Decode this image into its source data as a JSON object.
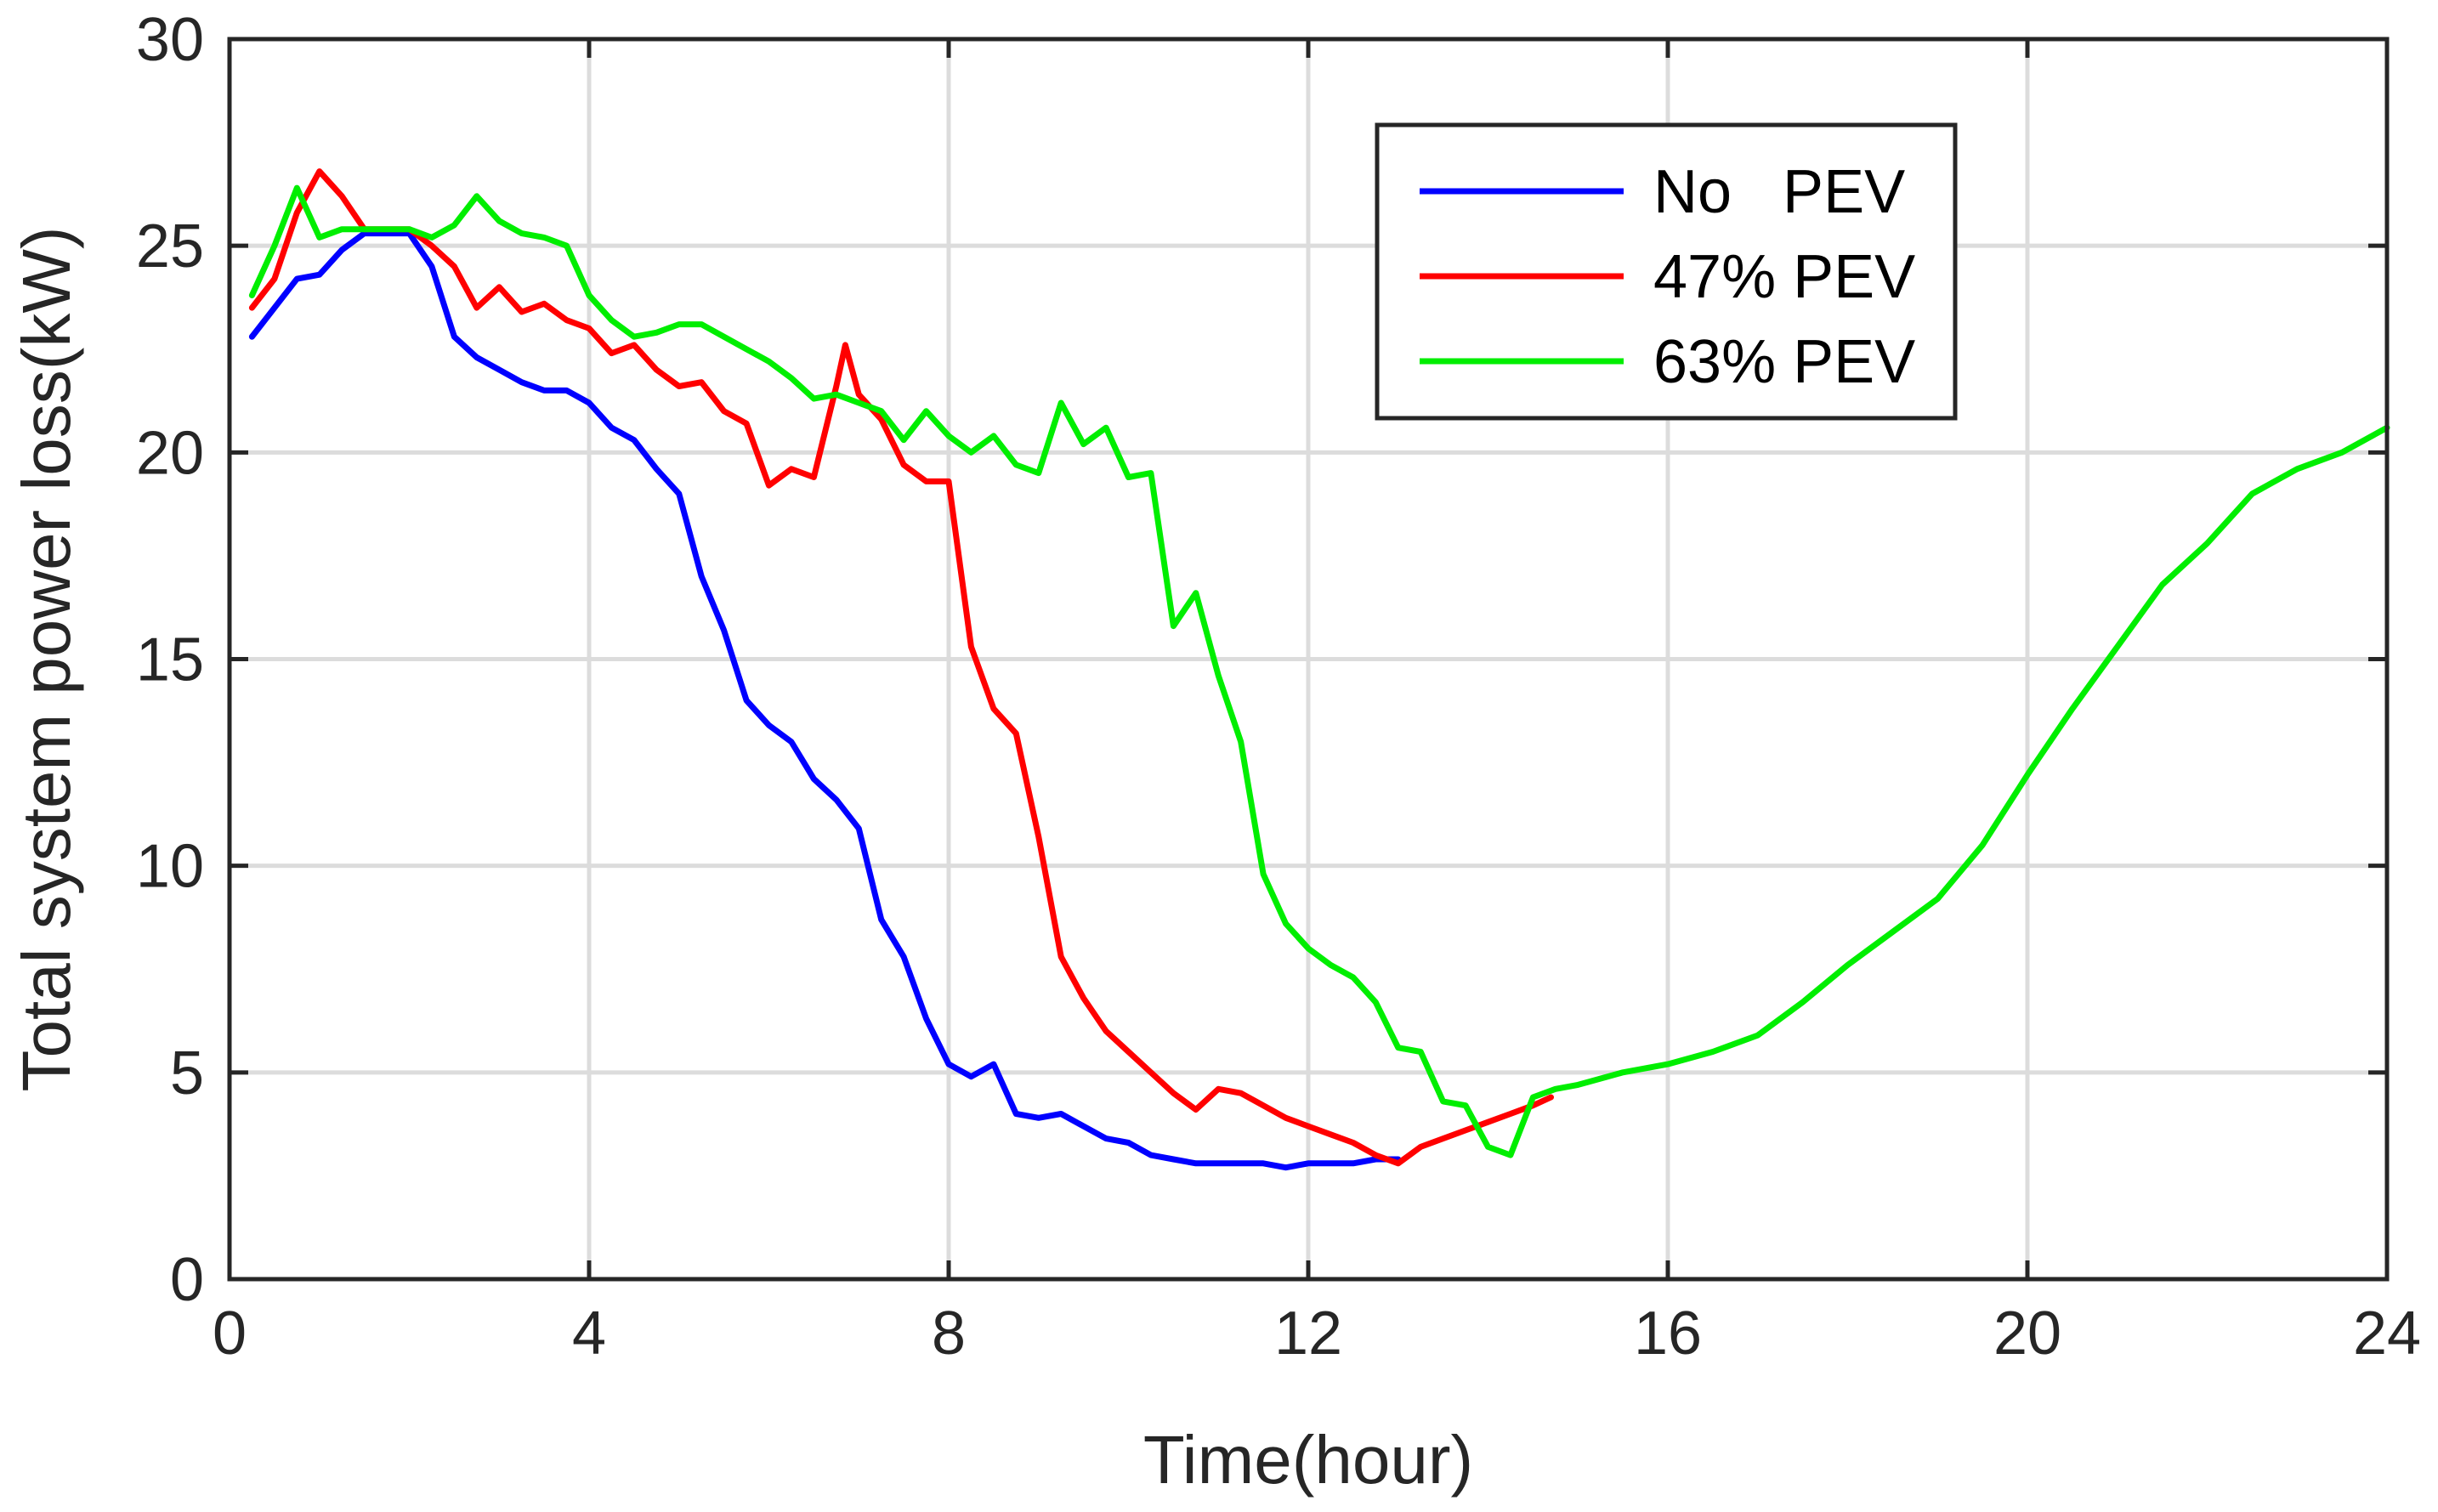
{
  "chart_data": {
    "type": "line",
    "title": "",
    "xlabel": "Time(hour)",
    "ylabel": "Total system power loss(kW)",
    "xlim": [
      0,
      24
    ],
    "ylim": [
      0,
      30
    ],
    "xticks": [
      0,
      4,
      8,
      12,
      16,
      20,
      24
    ],
    "yticks": [
      0,
      5,
      10,
      15,
      20,
      25,
      30
    ],
    "x_tick_labels": [
      "0",
      "4",
      "8",
      "12",
      "16",
      "20",
      "24"
    ],
    "y_tick_labels": [
      "0",
      "5",
      "10",
      "15",
      "20",
      "25",
      "30"
    ],
    "grid": true,
    "legend_position": "top-right",
    "series": [
      {
        "name": "No   PEV",
        "color": "#0000ff",
        "x": [
          0.25,
          0.5,
          0.75,
          1.0,
          1.25,
          1.5,
          2.0,
          2.25,
          2.5,
          2.75,
          3.0,
          3.25,
          3.5,
          3.75,
          4.0,
          4.25,
          4.5,
          4.75,
          5.0,
          5.25,
          5.5,
          5.75,
          6.0,
          6.25,
          6.5,
          6.75,
          7.0,
          7.25,
          7.5,
          7.75,
          8.0,
          8.25,
          8.5,
          8.75,
          9.0,
          9.25,
          9.5,
          9.75,
          10.0,
          10.25,
          10.5,
          10.75,
          11.0,
          11.25,
          11.5,
          11.75,
          12.0,
          12.25,
          12.5,
          12.75,
          13.0
        ],
        "values": [
          22.8,
          23.5,
          24.2,
          24.3,
          24.9,
          25.3,
          25.3,
          24.5,
          22.8,
          22.3,
          22.0,
          21.7,
          21.5,
          21.5,
          21.2,
          20.6,
          20.3,
          19.6,
          19.0,
          17.0,
          15.7,
          14.0,
          13.4,
          13.0,
          12.1,
          11.6,
          10.9,
          8.7,
          7.8,
          6.3,
          5.2,
          4.9,
          5.2,
          4.0,
          3.9,
          4.0,
          3.7,
          3.4,
          3.3,
          3.0,
          2.9,
          2.8,
          2.8,
          2.8,
          2.8,
          2.7,
          2.8,
          2.8,
          2.8,
          2.9,
          2.9
        ]
      },
      {
        "name": "47% PEV",
        "color": "#ff0000",
        "x": [
          0.25,
          0.5,
          0.75,
          1.0,
          1.25,
          1.5,
          2.0,
          2.25,
          2.5,
          2.75,
          3.0,
          3.25,
          3.5,
          3.75,
          4.0,
          4.25,
          4.5,
          4.75,
          5.0,
          5.25,
          5.5,
          5.75,
          6.0,
          6.25,
          6.5,
          6.75,
          6.85,
          7.0,
          7.25,
          7.5,
          7.75,
          8.0,
          8.25,
          8.5,
          8.75,
          9.0,
          9.25,
          9.5,
          9.75,
          10.0,
          10.25,
          10.5,
          10.75,
          11.0,
          11.25,
          11.5,
          11.75,
          12.0,
          12.25,
          12.5,
          12.75,
          13.0,
          13.25,
          13.5,
          13.75,
          14.0,
          14.25,
          14.5,
          14.7
        ],
        "values": [
          23.5,
          24.2,
          25.8,
          26.8,
          26.2,
          25.4,
          25.4,
          25.0,
          24.5,
          23.5,
          24.0,
          23.4,
          23.6,
          23.2,
          23.0,
          22.4,
          22.6,
          22.0,
          21.6,
          21.7,
          21.0,
          20.7,
          19.2,
          19.6,
          19.4,
          21.6,
          22.6,
          21.4,
          20.8,
          19.7,
          19.3,
          19.3,
          15.3,
          13.8,
          13.2,
          10.7,
          7.8,
          6.8,
          6.0,
          5.5,
          5.0,
          4.5,
          4.1,
          4.6,
          4.5,
          4.2,
          3.9,
          3.7,
          3.5,
          3.3,
          3.0,
          2.8,
          3.2,
          3.4,
          3.6,
          3.8,
          4.0,
          4.2,
          4.4
        ]
      },
      {
        "name": "63% PEV",
        "color": "#00ee00",
        "x": [
          0.25,
          0.5,
          0.75,
          1.0,
          1.25,
          1.5,
          2.0,
          2.25,
          2.5,
          2.75,
          3.0,
          3.25,
          3.5,
          3.75,
          4.0,
          4.25,
          4.5,
          4.75,
          5.0,
          5.25,
          5.5,
          5.75,
          6.0,
          6.25,
          6.5,
          6.75,
          7.0,
          7.25,
          7.5,
          7.75,
          8.0,
          8.25,
          8.5,
          8.75,
          9.0,
          9.25,
          9.5,
          9.75,
          10.0,
          10.25,
          10.5,
          10.75,
          11.0,
          11.25,
          11.5,
          11.75,
          12.0,
          12.25,
          12.5,
          12.75,
          13.0,
          13.25,
          13.5,
          13.75,
          14.0,
          14.25,
          14.5,
          14.75,
          15.0,
          15.5,
          16.0,
          16.5,
          17.0,
          17.5,
          18.0,
          18.5,
          19.0,
          19.5,
          20.0,
          20.5,
          21.0,
          21.5,
          22.0,
          22.5,
          23.0,
          23.5,
          24.0
        ],
        "values": [
          23.8,
          25.0,
          26.4,
          25.2,
          25.4,
          25.4,
          25.4,
          25.2,
          25.5,
          26.2,
          25.6,
          25.3,
          25.2,
          25.0,
          23.8,
          23.2,
          22.8,
          22.9,
          23.1,
          23.1,
          22.8,
          22.5,
          22.2,
          21.8,
          21.3,
          21.4,
          21.2,
          21.0,
          20.3,
          21.0,
          20.4,
          20.0,
          20.4,
          19.7,
          19.5,
          21.2,
          20.2,
          20.6,
          19.4,
          19.5,
          15.8,
          16.6,
          14.6,
          13.0,
          9.8,
          8.6,
          8.0,
          7.6,
          7.3,
          6.7,
          5.6,
          5.5,
          4.3,
          4.2,
          3.2,
          3.0,
          4.4,
          4.6,
          4.7,
          5.0,
          5.2,
          5.5,
          5.9,
          6.7,
          7.6,
          8.4,
          9.2,
          10.5,
          12.2,
          13.8,
          15.3,
          16.8,
          17.8,
          19.0,
          19.6,
          20.0,
          20.6
        ]
      }
    ]
  }
}
